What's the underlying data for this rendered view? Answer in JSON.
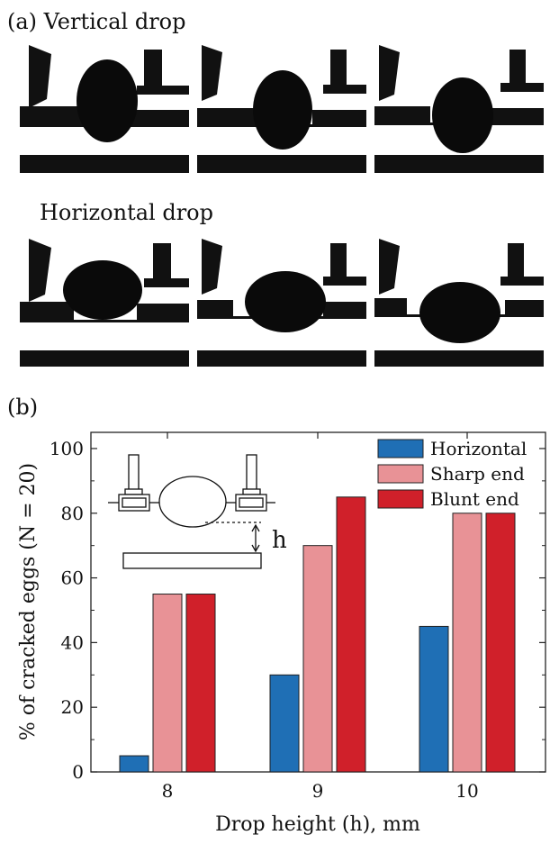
{
  "panel_a": {
    "label": "(a) Vertical drop",
    "row2_label": "Horizontal drop"
  },
  "panel_b": {
    "label": "(b)",
    "inset_label": "h"
  },
  "chart_data": {
    "type": "bar",
    "categories": [
      "8",
      "9",
      "10"
    ],
    "series": [
      {
        "name": "Horizontal",
        "values": [
          5,
          30,
          45
        ],
        "color": "#1f6fb5"
      },
      {
        "name": "Sharp end",
        "values": [
          55,
          70,
          80
        ],
        "color": "#e89296"
      },
      {
        "name": "Blunt end",
        "values": [
          55,
          85,
          80
        ],
        "color": "#d0202a"
      }
    ],
    "xlabel": "Drop height (h), mm",
    "ylabel": "% of cracked eggs (N = 20)",
    "ylim": [
      0,
      105
    ],
    "yticks": [
      0,
      20,
      40,
      60,
      80,
      100
    ],
    "legend": "top-right",
    "grid": false
  }
}
